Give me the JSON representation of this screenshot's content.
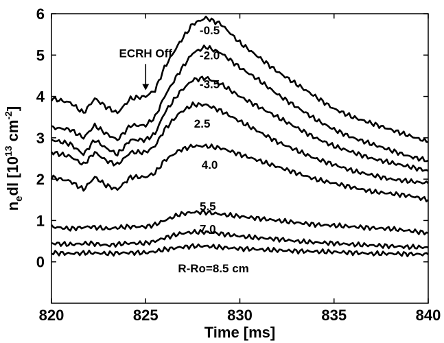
{
  "chart_data": {
    "type": "line",
    "xlabel": "Time [ms]",
    "ylabel_main": "n",
    "ylabel_sub": "e",
    "ylabel_mid": "dl [10",
    "ylabel_sup1": "13",
    "ylabel_mid2": " cm",
    "ylabel_sup2": "-2",
    "ylabel_end": "]",
    "xlim": [
      820,
      840
    ],
    "ylim": [
      -1,
      6
    ],
    "x_ticks": [
      820,
      825,
      830,
      835,
      840
    ],
    "y_ticks": [
      0,
      1,
      2,
      3,
      4,
      5,
      6
    ],
    "grid": false,
    "annotations": [
      {
        "text": "ECRH Off",
        "x": 825,
        "y": 4.95,
        "arrow_to": [
          825,
          4.15
        ]
      }
    ],
    "series": [
      {
        "label": "-0.5",
        "label_pos": [
          828.4,
          5.6
        ],
        "points": [
          [
            820,
            3.95
          ],
          [
            821,
            3.85
          ],
          [
            821.7,
            3.6
          ],
          [
            822.3,
            3.95
          ],
          [
            822.9,
            3.75
          ],
          [
            823.5,
            3.6
          ],
          [
            824.2,
            3.95
          ],
          [
            825,
            4.0
          ],
          [
            825.5,
            4.15
          ],
          [
            826,
            4.7
          ],
          [
            826.8,
            5.3
          ],
          [
            827.5,
            5.75
          ],
          [
            828.2,
            5.9
          ],
          [
            829,
            5.75
          ],
          [
            830,
            5.3
          ],
          [
            831,
            4.95
          ],
          [
            832,
            4.6
          ],
          [
            833,
            4.3
          ],
          [
            834,
            4.0
          ],
          [
            835,
            3.7
          ],
          [
            836,
            3.5
          ],
          [
            837,
            3.35
          ],
          [
            838,
            3.2
          ],
          [
            839,
            3.05
          ],
          [
            840,
            2.9
          ]
        ]
      },
      {
        "label": "-2.0",
        "label_pos": [
          828.4,
          5.0
        ],
        "points": [
          [
            820,
            3.25
          ],
          [
            821,
            3.2
          ],
          [
            821.7,
            3.0
          ],
          [
            822.3,
            3.3
          ],
          [
            822.9,
            3.1
          ],
          [
            823.5,
            2.95
          ],
          [
            824.2,
            3.3
          ],
          [
            825,
            3.3
          ],
          [
            825.5,
            3.5
          ],
          [
            826,
            4.0
          ],
          [
            826.8,
            4.6
          ],
          [
            827.5,
            5.05
          ],
          [
            828.2,
            5.2
          ],
          [
            829,
            5.05
          ],
          [
            830,
            4.7
          ],
          [
            831,
            4.4
          ],
          [
            832,
            4.05
          ],
          [
            833,
            3.75
          ],
          [
            834,
            3.45
          ],
          [
            835,
            3.2
          ],
          [
            836,
            3.0
          ],
          [
            837,
            2.85
          ],
          [
            838,
            2.7
          ],
          [
            839,
            2.55
          ],
          [
            840,
            2.45
          ]
        ]
      },
      {
        "label": "-3.5",
        "label_pos": [
          828.4,
          4.3
        ],
        "points": [
          [
            820,
            2.95
          ],
          [
            821,
            2.85
          ],
          [
            821.7,
            2.6
          ],
          [
            822.3,
            2.95
          ],
          [
            822.9,
            2.75
          ],
          [
            823.5,
            2.6
          ],
          [
            824.2,
            2.95
          ],
          [
            825,
            2.95
          ],
          [
            825.5,
            3.1
          ],
          [
            826,
            3.6
          ],
          [
            826.8,
            4.1
          ],
          [
            827.5,
            4.4
          ],
          [
            828.2,
            4.45
          ],
          [
            829,
            4.3
          ],
          [
            830,
            4.0
          ],
          [
            831,
            3.75
          ],
          [
            832,
            3.5
          ],
          [
            833,
            3.25
          ],
          [
            834,
            3.0
          ],
          [
            835,
            2.8
          ],
          [
            836,
            2.65
          ],
          [
            837,
            2.5
          ],
          [
            838,
            2.4
          ],
          [
            839,
            2.3
          ],
          [
            840,
            2.2
          ]
        ]
      },
      {
        "label": "2.5",
        "label_pos": [
          828.0,
          3.35
        ],
        "points": [
          [
            820,
            2.65
          ],
          [
            821,
            2.55
          ],
          [
            821.7,
            2.35
          ],
          [
            822.3,
            2.65
          ],
          [
            822.9,
            2.45
          ],
          [
            823.5,
            2.35
          ],
          [
            824.2,
            2.65
          ],
          [
            825,
            2.65
          ],
          [
            825.5,
            2.8
          ],
          [
            826,
            3.2
          ],
          [
            826.8,
            3.6
          ],
          [
            827.5,
            3.8
          ],
          [
            828.2,
            3.8
          ],
          [
            829,
            3.65
          ],
          [
            830,
            3.4
          ],
          [
            831,
            3.15
          ],
          [
            832,
            2.9
          ],
          [
            833,
            2.7
          ],
          [
            834,
            2.5
          ],
          [
            835,
            2.35
          ],
          [
            836,
            2.2
          ],
          [
            837,
            2.1
          ],
          [
            838,
            2.0
          ],
          [
            839,
            1.95
          ],
          [
            840,
            1.9
          ]
        ]
      },
      {
        "label": "4.0",
        "label_pos": [
          828.4,
          2.35
        ],
        "points": [
          [
            820,
            2.05
          ],
          [
            821,
            1.95
          ],
          [
            821.7,
            1.75
          ],
          [
            822.3,
            2.05
          ],
          [
            822.9,
            1.85
          ],
          [
            823.5,
            1.75
          ],
          [
            824.2,
            2.05
          ],
          [
            825,
            2.05
          ],
          [
            825.5,
            2.15
          ],
          [
            826,
            2.45
          ],
          [
            826.8,
            2.7
          ],
          [
            827.5,
            2.8
          ],
          [
            828.2,
            2.8
          ],
          [
            829,
            2.75
          ],
          [
            830,
            2.6
          ],
          [
            831,
            2.45
          ],
          [
            832,
            2.3
          ],
          [
            833,
            2.15
          ],
          [
            834,
            2.0
          ],
          [
            835,
            1.9
          ],
          [
            836,
            1.8
          ],
          [
            837,
            1.7
          ],
          [
            838,
            1.65
          ],
          [
            839,
            1.6
          ],
          [
            840,
            1.5
          ]
        ]
      },
      {
        "label": "5.5",
        "label_pos": [
          828.3,
          1.35
        ],
        "points": [
          [
            820,
            0.85
          ],
          [
            821,
            0.8
          ],
          [
            822,
            0.85
          ],
          [
            823,
            0.8
          ],
          [
            824,
            0.85
          ],
          [
            825,
            0.85
          ],
          [
            825.5,
            0.9
          ],
          [
            826,
            1.0
          ],
          [
            826.8,
            1.15
          ],
          [
            827.5,
            1.2
          ],
          [
            828.2,
            1.2
          ],
          [
            829,
            1.15
          ],
          [
            830,
            1.1
          ],
          [
            831,
            1.05
          ],
          [
            832,
            1.0
          ],
          [
            833,
            0.95
          ],
          [
            834,
            0.9
          ],
          [
            835,
            0.88
          ],
          [
            836,
            0.85
          ],
          [
            837,
            0.82
          ],
          [
            838,
            0.8
          ],
          [
            839,
            0.75
          ],
          [
            840,
            0.7
          ]
        ]
      },
      {
        "label": "7.0",
        "label_pos": [
          828.3,
          0.8
        ],
        "points": [
          [
            820,
            0.45
          ],
          [
            821,
            0.42
          ],
          [
            822,
            0.45
          ],
          [
            823,
            0.4
          ],
          [
            824,
            0.45
          ],
          [
            825,
            0.45
          ],
          [
            825.5,
            0.5
          ],
          [
            826,
            0.58
          ],
          [
            826.8,
            0.68
          ],
          [
            827.5,
            0.72
          ],
          [
            828.2,
            0.72
          ],
          [
            829,
            0.68
          ],
          [
            830,
            0.62
          ],
          [
            831,
            0.58
          ],
          [
            832,
            0.55
          ],
          [
            833,
            0.5
          ],
          [
            834,
            0.47
          ],
          [
            835,
            0.45
          ],
          [
            836,
            0.42
          ],
          [
            837,
            0.4
          ],
          [
            838,
            0.38
          ],
          [
            839,
            0.36
          ],
          [
            840,
            0.35
          ]
        ]
      },
      {
        "label": "R-Ro=8.5 cm",
        "label_pos": [
          828.6,
          -0.15
        ],
        "points": [
          [
            820,
            0.22
          ],
          [
            821,
            0.2
          ],
          [
            822,
            0.22
          ],
          [
            823,
            0.2
          ],
          [
            824,
            0.22
          ],
          [
            825,
            0.22
          ],
          [
            825.5,
            0.25
          ],
          [
            826,
            0.3
          ],
          [
            826.8,
            0.35
          ],
          [
            827.5,
            0.38
          ],
          [
            828.2,
            0.38
          ],
          [
            829,
            0.35
          ],
          [
            830,
            0.32
          ],
          [
            831,
            0.3
          ],
          [
            832,
            0.28
          ],
          [
            833,
            0.26
          ],
          [
            834,
            0.25
          ],
          [
            835,
            0.24
          ],
          [
            836,
            0.22
          ],
          [
            837,
            0.2
          ],
          [
            838,
            0.2
          ],
          [
            839,
            0.19
          ],
          [
            840,
            0.18
          ]
        ]
      }
    ]
  }
}
